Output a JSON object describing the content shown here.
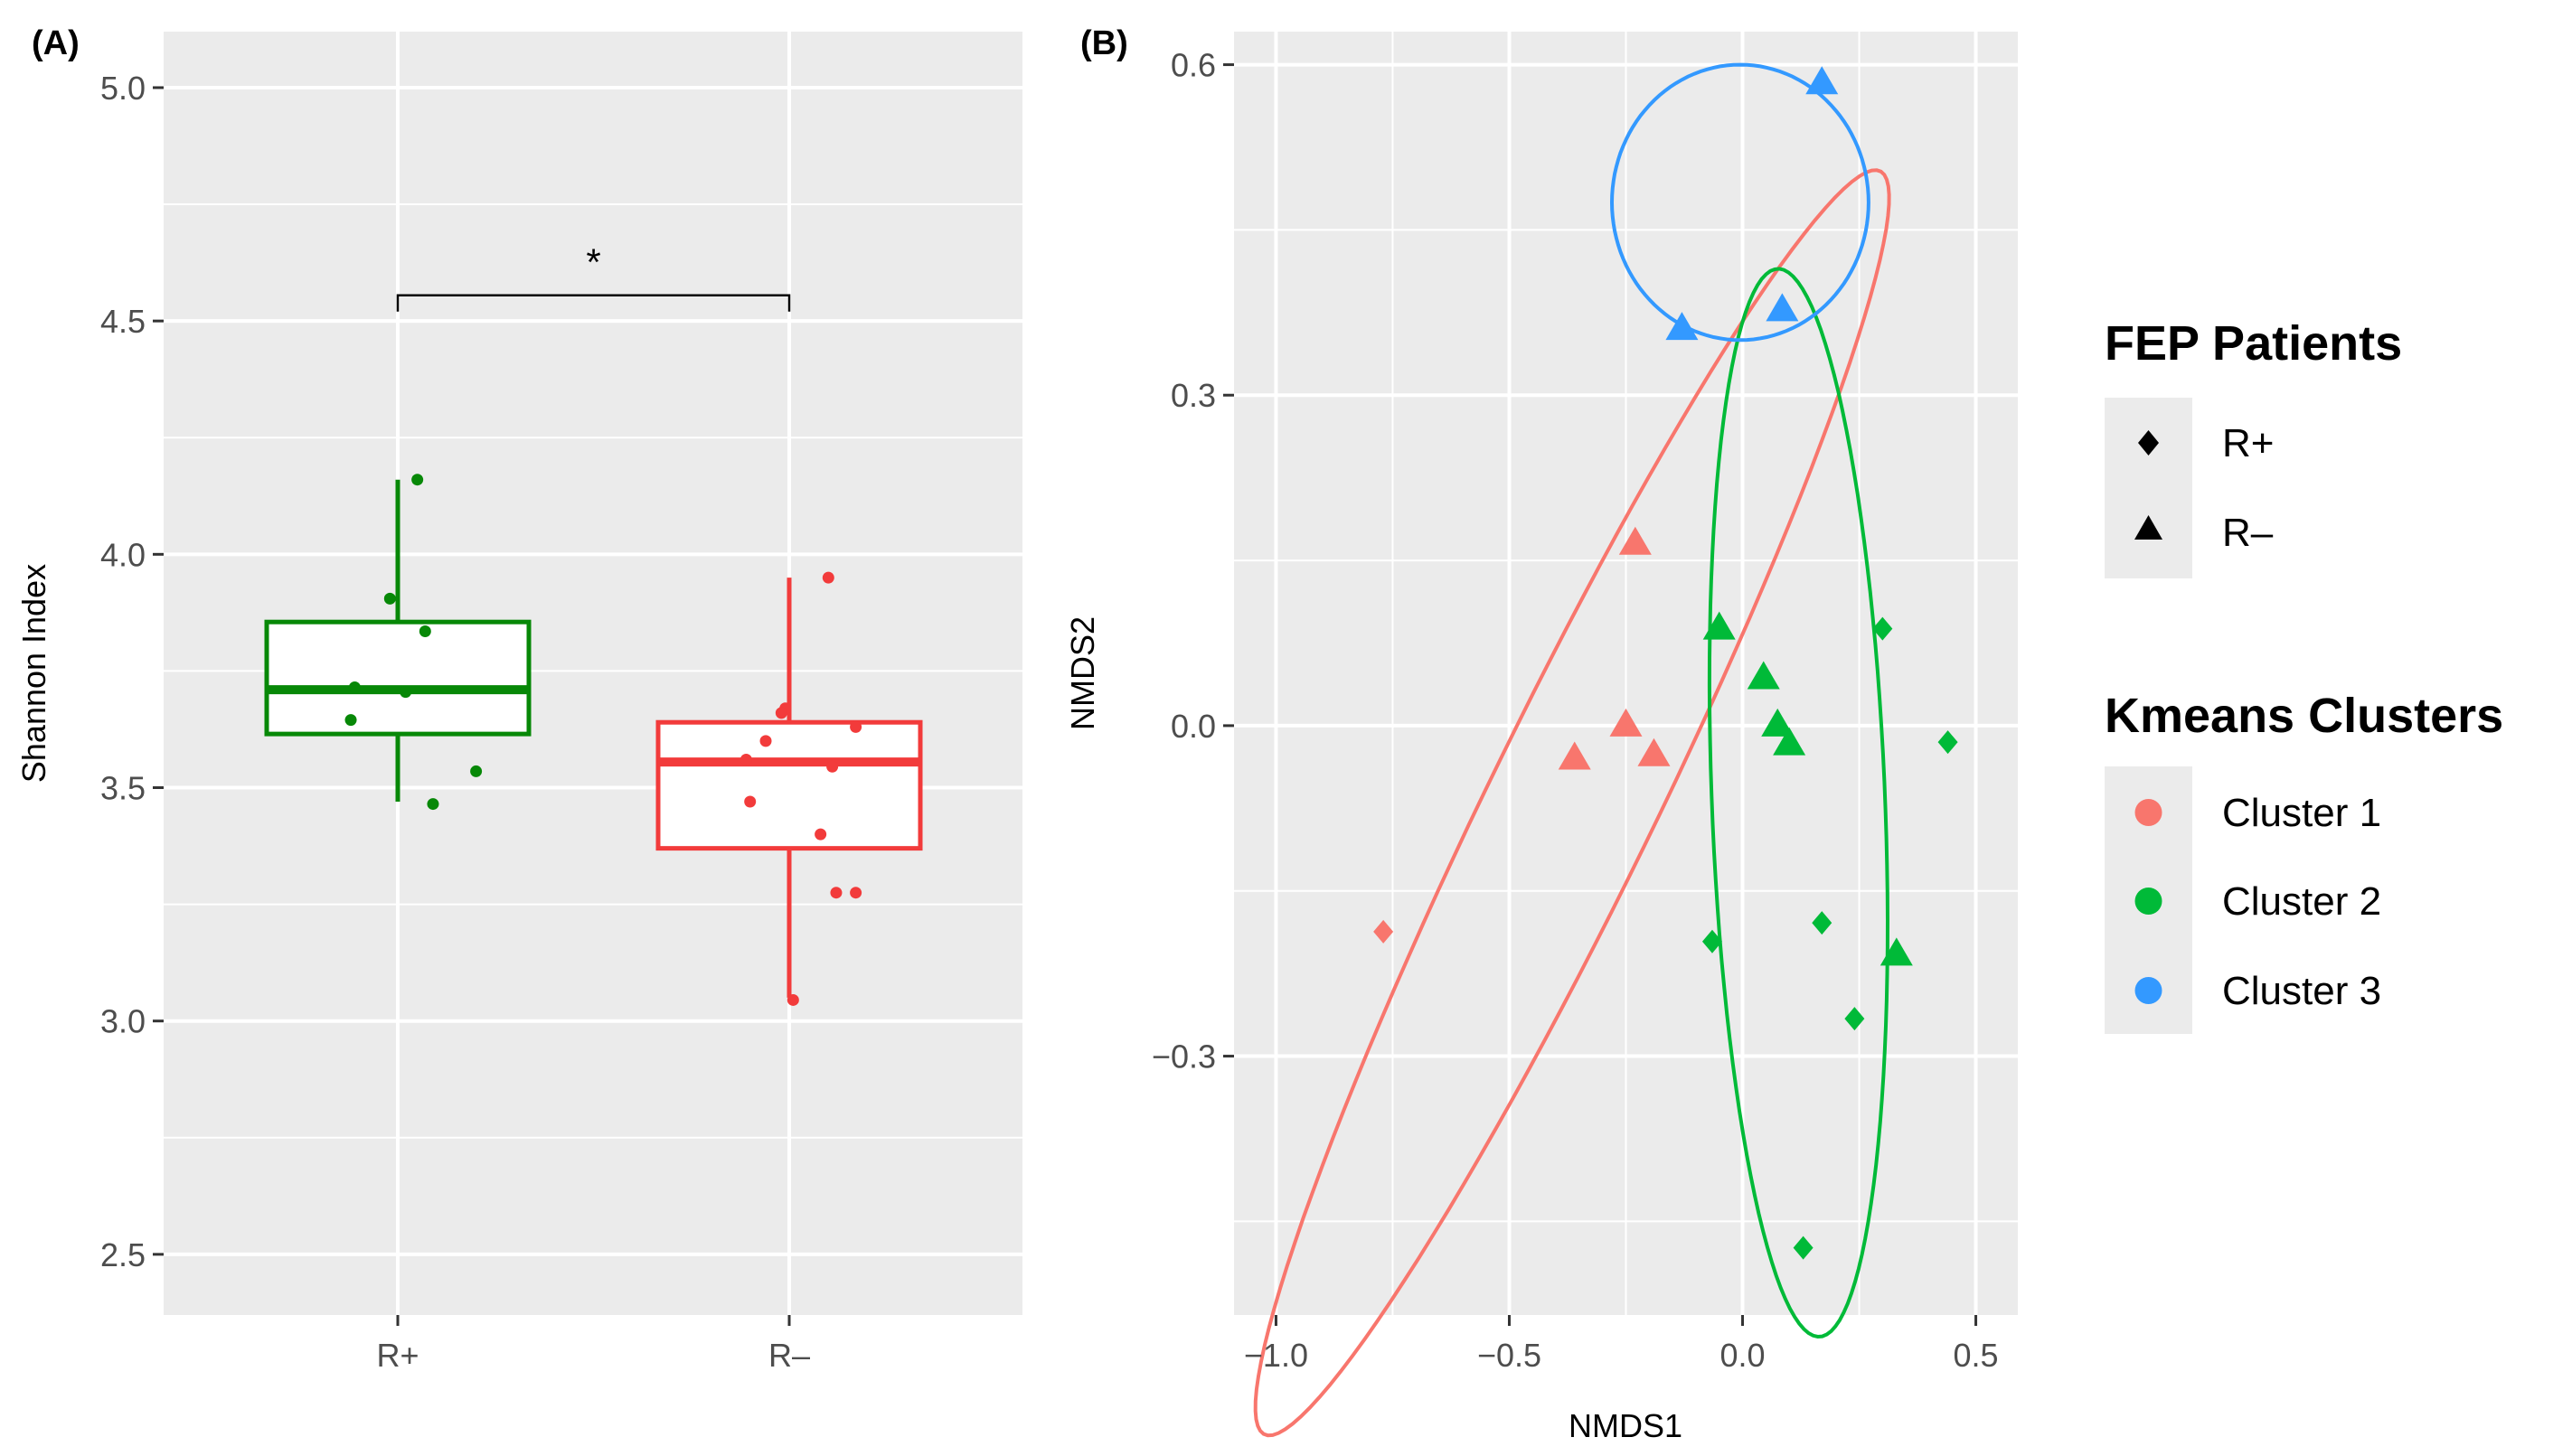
{
  "chart_data": [
    {
      "type": "box",
      "panel_label": "(A)",
      "xlabel": "",
      "ylabel": "Shannon Index",
      "ylim": [
        2.37,
        5.12
      ],
      "yticks": [
        2.5,
        3.0,
        3.5,
        4.0,
        4.5,
        5.0
      ],
      "ytick_labels": [
        "2.5",
        "3.0",
        "3.5",
        "4.0",
        "4.5",
        "5.0"
      ],
      "categories": [
        "R+",
        "R–"
      ],
      "boxes": [
        {
          "name": "R+",
          "color": "#078807",
          "whisker_low": 3.47,
          "q1": 3.615,
          "median": 3.71,
          "q3": 3.855,
          "whisker_high": 4.16
        },
        {
          "name": "R–",
          "color": "#f23b3b",
          "whisker_low": 3.05,
          "q1": 3.37,
          "median": 3.555,
          "q3": 3.64,
          "whisker_high": 3.95
        }
      ],
      "points": [
        {
          "group": "R+",
          "jitter": 0.05,
          "y": 4.16
        },
        {
          "group": "R+",
          "jitter": -0.02,
          "y": 3.905
        },
        {
          "group": "R+",
          "jitter": 0.07,
          "y": 3.835
        },
        {
          "group": "R+",
          "jitter": -0.11,
          "y": 3.715
        },
        {
          "group": "R+",
          "jitter": 0.02,
          "y": 3.705
        },
        {
          "group": "R+",
          "jitter": -0.12,
          "y": 3.645
        },
        {
          "group": "R+",
          "jitter": 0.2,
          "y": 3.535
        },
        {
          "group": "R+",
          "jitter": 0.09,
          "y": 3.465
        },
        {
          "group": "R–",
          "jitter": 0.1,
          "y": 3.95
        },
        {
          "group": "R–",
          "jitter": -0.01,
          "y": 3.67
        },
        {
          "group": "R–",
          "jitter": -0.02,
          "y": 3.66
        },
        {
          "group": "R–",
          "jitter": 0.17,
          "y": 3.63
        },
        {
          "group": "R–",
          "jitter": -0.06,
          "y": 3.6
        },
        {
          "group": "R–",
          "jitter": -0.11,
          "y": 3.56
        },
        {
          "group": "R–",
          "jitter": 0.11,
          "y": 3.545
        },
        {
          "group": "R–",
          "jitter": -0.1,
          "y": 3.47
        },
        {
          "group": "R–",
          "jitter": 0.08,
          "y": 3.4
        },
        {
          "group": "R–",
          "jitter": 0.12,
          "y": 3.275
        },
        {
          "group": "R–",
          "jitter": 0.17,
          "y": 3.275
        },
        {
          "group": "R–",
          "jitter": 0.01,
          "y": 3.045
        }
      ],
      "significance": {
        "label": "*",
        "between": [
          "R+",
          "R–"
        ],
        "y": 4.555
      }
    },
    {
      "type": "scatter",
      "panel_label": "(B)",
      "xlabel": "NMDS1",
      "ylabel": "NMDS2",
      "xlim": [
        -1.09,
        0.59
      ],
      "ylim": [
        -0.535,
        0.63
      ],
      "xticks": [
        -1.0,
        -0.5,
        0.0,
        0.5
      ],
      "xtick_labels": [
        "−1.0",
        "−0.5",
        "0.0",
        "0.5"
      ],
      "yticks": [
        -0.3,
        0.0,
        0.3,
        0.6
      ],
      "ytick_labels": [
        "−0.3",
        "0.0",
        "0.3",
        "0.6"
      ],
      "points": [
        {
          "x": -0.77,
          "y": -0.187,
          "shape": "R+",
          "cluster": "Cluster 1"
        },
        {
          "x": -0.23,
          "y": 0.165,
          "shape": "R–",
          "cluster": "Cluster 1"
        },
        {
          "x": -0.25,
          "y": 0.0,
          "shape": "R–",
          "cluster": "Cluster 1"
        },
        {
          "x": -0.36,
          "y": -0.03,
          "shape": "R–",
          "cluster": "Cluster 1"
        },
        {
          "x": -0.19,
          "y": -0.027,
          "shape": "R–",
          "cluster": "Cluster 1"
        },
        {
          "x": -0.05,
          "y": 0.088,
          "shape": "R–",
          "cluster": "Cluster 2"
        },
        {
          "x": 0.3,
          "y": 0.088,
          "shape": "R+",
          "cluster": "Cluster 2"
        },
        {
          "x": 0.045,
          "y": 0.043,
          "shape": "R–",
          "cluster": "Cluster 2"
        },
        {
          "x": 0.075,
          "y": 0.0,
          "shape": "R–",
          "cluster": "Cluster 2"
        },
        {
          "x": 0.1,
          "y": -0.017,
          "shape": "R–",
          "cluster": "Cluster 2"
        },
        {
          "x": 0.44,
          "y": -0.015,
          "shape": "R+",
          "cluster": "Cluster 2"
        },
        {
          "x": -0.065,
          "y": -0.196,
          "shape": "R+",
          "cluster": "Cluster 2"
        },
        {
          "x": 0.17,
          "y": -0.179,
          "shape": "R+",
          "cluster": "Cluster 2"
        },
        {
          "x": 0.33,
          "y": -0.208,
          "shape": "R–",
          "cluster": "Cluster 2"
        },
        {
          "x": 0.24,
          "y": -0.266,
          "shape": "R+",
          "cluster": "Cluster 2"
        },
        {
          "x": 0.13,
          "y": -0.474,
          "shape": "R+",
          "cluster": "Cluster 2"
        },
        {
          "x": 0.17,
          "y": 0.583,
          "shape": "R–",
          "cluster": "Cluster 3"
        },
        {
          "x": -0.13,
          "y": 0.36,
          "shape": "R–",
          "cluster": "Cluster 3"
        },
        {
          "x": 0.085,
          "y": 0.377,
          "shape": "R–",
          "cluster": "Cluster 3"
        }
      ],
      "ellipses": [
        {
          "cluster": "Cluster 1",
          "cx": -0.365,
          "cy": -0.07,
          "rx": 0.88,
          "ry": 0.13,
          "angle_deg": 40
        },
        {
          "cluster": "Cluster 2",
          "cx": 0.12,
          "cy": -0.07,
          "rx": 0.185,
          "ry": 0.487,
          "angle_deg": 6
        },
        {
          "cluster": "Cluster 3",
          "cx": -0.005,
          "cy": 0.475,
          "rx": 0.275,
          "ry": 0.125,
          "angle_deg": 0
        }
      ]
    }
  ],
  "legend": {
    "shape_title": "FEP Patients",
    "shape_items": [
      {
        "label": "R+",
        "shape": "diamond"
      },
      {
        "label": "R–",
        "shape": "triangle"
      }
    ],
    "color_title": "Kmeans Clusters",
    "color_items": [
      {
        "label": "Cluster 1",
        "color": "#F8766D"
      },
      {
        "label": "Cluster 2",
        "color": "#00BA38"
      },
      {
        "label": "Cluster 3",
        "color": "#3399FF"
      }
    ]
  },
  "colors": {
    "panel_bg": "#EBEBEB",
    "grid": "#FFFFFF",
    "axis_text": "#4D4D4D",
    "r_plus_green": "#078807",
    "r_minus_red": "#f23b3b"
  }
}
